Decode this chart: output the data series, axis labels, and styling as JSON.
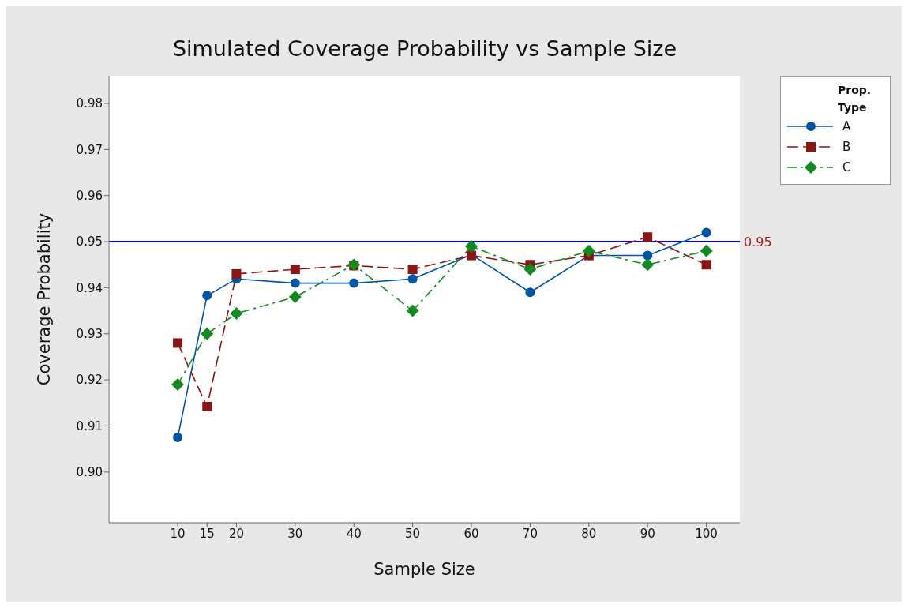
{
  "chart_data": {
    "type": "line",
    "title": "Simulated Coverage Probability vs Sample Size",
    "xlabel": "Sample Size",
    "ylabel": "Coverage Probability",
    "legend_title": "Prop. Type",
    "x": [
      10,
      15,
      20,
      30,
      40,
      50,
      60,
      70,
      80,
      90,
      100
    ],
    "series": [
      {
        "name": "A",
        "color": "#0054a6",
        "marker": "circle",
        "line_style": "solid",
        "values": [
          0.9075,
          0.9383,
          0.9419,
          0.941,
          0.941,
          0.9419,
          0.9472,
          0.939,
          0.947,
          0.947,
          0.952
        ]
      },
      {
        "name": "B",
        "color": "#8b1414",
        "marker": "square",
        "line_style": "dashed",
        "values": [
          0.928,
          0.9142,
          0.943,
          0.944,
          0.9448,
          0.944,
          0.947,
          0.945,
          0.947,
          0.951,
          0.945
        ]
      },
      {
        "name": "C",
        "color": "#138a1f",
        "marker": "diamond",
        "line_style": "dashdot",
        "values": [
          0.919,
          0.93,
          0.9344,
          0.938,
          0.945,
          0.935,
          0.949,
          0.944,
          0.948,
          0.945,
          0.948
        ]
      }
    ],
    "xlim": [
      -1.7,
      105.7
    ],
    "xticks": [
      10,
      15,
      20,
      30,
      40,
      50,
      60,
      70,
      80,
      90,
      100
    ],
    "ylim": [
      0.889,
      0.986
    ],
    "yticks": [
      {
        "value": 0.9,
        "label": "0.90"
      },
      {
        "value": 0.91,
        "label": "0.91"
      },
      {
        "value": 0.92,
        "label": "0.92"
      },
      {
        "value": 0.93,
        "label": "0.93"
      },
      {
        "value": 0.94,
        "label": "0.94"
      },
      {
        "value": 0.95,
        "label": "0.95"
      },
      {
        "value": 0.96,
        "label": "0.96"
      },
      {
        "value": 0.97,
        "label": "0.97"
      },
      {
        "value": 0.98,
        "label": "0.98"
      }
    ],
    "ref_lines": [
      {
        "axis": "y",
        "value": 0.95,
        "label": "0.95",
        "color": "#0000ff"
      }
    ],
    "grid": false,
    "legend": "top right"
  }
}
